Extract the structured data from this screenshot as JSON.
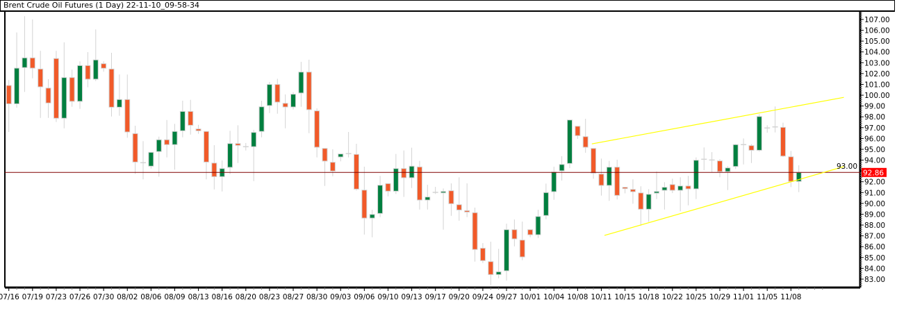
{
  "header": {
    "title": "Brent Crude Oil Futures (1 Day) 22-11-10_09-58-34"
  },
  "colors": {
    "bull": "#007f3f",
    "bear": "#f15a29",
    "outline": "#d3d3d3",
    "wick": "#d3d3d3",
    "trendline": "#ffff00",
    "price_line": "#800000",
    "price_badge": "#ff0000"
  },
  "chart_data": {
    "type": "candlestick",
    "title": "Brent Crude Oil Futures (1 Day) 22-11-10_09-58-34",
    "ylim": [
      82.3,
      107.7
    ],
    "y_ticks": [
      "107.00",
      "106.00",
      "105.00",
      "104.00",
      "103.00",
      "102.00",
      "101.00",
      "100.00",
      "99.00",
      "98.00",
      "97.00",
      "96.00",
      "95.00",
      "94.00",
      "93.00",
      "92.00",
      "91.00",
      "90.00",
      "89.00",
      "88.00",
      "87.00",
      "86.00",
      "85.00",
      "84.00",
      "83.00"
    ],
    "x_ticks": [
      {
        "index": 0,
        "label": "07/16"
      },
      {
        "index": 3,
        "label": "07/19"
      },
      {
        "index": 6,
        "label": "07/23"
      },
      {
        "index": 9,
        "label": "07/26"
      },
      {
        "index": 12,
        "label": "07/30"
      },
      {
        "index": 15,
        "label": "08/02"
      },
      {
        "index": 18,
        "label": "08/06"
      },
      {
        "index": 21,
        "label": "08/09"
      },
      {
        "index": 24,
        "label": "08/13"
      },
      {
        "index": 27,
        "label": "08/16"
      },
      {
        "index": 30,
        "label": "08/20"
      },
      {
        "index": 33,
        "label": "08/23"
      },
      {
        "index": 36,
        "label": "08/27"
      },
      {
        "index": 39,
        "label": "08/30"
      },
      {
        "index": 42,
        "label": "09/03"
      },
      {
        "index": 45,
        "label": "09/06"
      },
      {
        "index": 48,
        "label": "09/10"
      },
      {
        "index": 51,
        "label": "09/13"
      },
      {
        "index": 54,
        "label": "09/17"
      },
      {
        "index": 57,
        "label": "09/20"
      },
      {
        "index": 60,
        "label": "09/24"
      },
      {
        "index": 63,
        "label": "09/27"
      },
      {
        "index": 66,
        "label": "10/01"
      },
      {
        "index": 69,
        "label": "10/04"
      },
      {
        "index": 72,
        "label": "10/08"
      },
      {
        "index": 75,
        "label": "10/11"
      },
      {
        "index": 78,
        "label": "10/15"
      },
      {
        "index": 81,
        "label": "10/18"
      },
      {
        "index": 84,
        "label": "10/22"
      },
      {
        "index": 87,
        "label": "10/25"
      },
      {
        "index": 90,
        "label": "10/29"
      },
      {
        "index": 93,
        "label": "11/01"
      },
      {
        "index": 96,
        "label": "11/05"
      },
      {
        "index": 99,
        "label": "11/08"
      }
    ],
    "last_price": "92.86",
    "ohlc_columns": [
      "open",
      "high",
      "low",
      "close"
    ],
    "ohlc": [
      [
        100.9,
        101.4,
        96.6,
        99.2
      ],
      [
        99.2,
        105.8,
        98.85,
        102.5
      ],
      [
        102.55,
        107.3,
        100.3,
        103.45
      ],
      [
        103.45,
        107,
        101.56,
        102.5
      ],
      [
        102.42,
        104.1,
        97.9,
        100.77
      ],
      [
        100.66,
        101.48,
        97.9,
        99.28
      ],
      [
        103.39,
        104.1,
        97.52,
        97.87
      ],
      [
        97.87,
        104.88,
        96.94,
        101.63
      ],
      [
        101.63,
        102.36,
        98.93,
        99.43
      ],
      [
        99.43,
        103.13,
        98.74,
        102.74
      ],
      [
        102.74,
        103.98,
        100.73,
        101.48
      ],
      [
        101.48,
        106.08,
        101.3,
        103.26
      ],
      [
        102.91,
        103.13,
        102.17,
        102.49
      ],
      [
        102.42,
        103.92,
        98.03,
        98.89
      ],
      [
        98.89,
        101.91,
        98.1,
        99.6
      ],
      [
        99.6,
        101.91,
        96.07,
        96.6
      ],
      [
        96.45,
        97.18,
        92.73,
        93.82
      ],
      [
        93.76,
        95.75,
        92.22,
        93.76
      ],
      [
        93.44,
        94.72,
        93.22,
        94.72
      ],
      [
        94.79,
        96.17,
        92.47,
        95.88
      ],
      [
        95.88,
        97.71,
        94.25,
        95.43
      ],
      [
        95.43,
        97.35,
        93.12,
        96.65
      ],
      [
        96.71,
        99.49,
        96.11,
        98.5
      ],
      [
        98.5,
        99.57,
        96.36,
        97.22
      ],
      [
        96.88,
        97.26,
        96.43,
        96.71
      ],
      [
        96.65,
        96.65,
        92.22,
        93.82
      ],
      [
        93.73,
        95.38,
        91.29,
        92.47
      ],
      [
        92.47,
        93.97,
        91.1,
        93.22
      ],
      [
        93.33,
        96.71,
        92.71,
        95.53
      ],
      [
        95.53,
        97.22,
        93.73,
        95.36
      ],
      [
        95.24,
        95.58,
        94.89,
        95.24
      ],
      [
        95.24,
        96.8,
        92.06,
        96.56
      ],
      [
        96.65,
        99.49,
        96.11,
        98.93
      ],
      [
        99.04,
        101.22,
        98.35,
        100.99
      ],
      [
        100.99,
        101.52,
        98.29,
        99.36
      ],
      [
        99.25,
        100.07,
        96.94,
        98.91
      ],
      [
        98.91,
        100.28,
        98.68,
        100.09
      ],
      [
        100.2,
        103.08,
        98.93,
        102.14
      ],
      [
        102.14,
        103.28,
        96.49,
        98.66
      ],
      [
        98.55,
        98.78,
        94.25,
        95.19
      ],
      [
        95.08,
        95.08,
        91.61,
        93.91
      ],
      [
        93.8,
        95,
        92.51,
        92.99
      ],
      [
        94.29,
        94.57,
        93.89,
        94.57
      ],
      [
        94.6,
        96.6,
        94.25,
        94.6
      ],
      [
        94.53,
        95.51,
        91.19,
        91.32
      ],
      [
        91.23,
        93.39,
        87.12,
        88.64
      ],
      [
        88.64,
        89.41,
        86.87,
        88.98
      ],
      [
        89.07,
        92.54,
        88.73,
        91.68
      ],
      [
        91.83,
        91.83,
        90.65,
        91.13
      ],
      [
        91.13,
        94.57,
        90.87,
        93.22
      ],
      [
        93.22,
        94.89,
        90.6,
        92.37
      ],
      [
        92.37,
        95.15,
        91.42,
        93.44
      ],
      [
        93.37,
        93.93,
        89.43,
        90.31
      ],
      [
        90.31,
        91.72,
        89.43,
        90.59
      ],
      [
        91.02,
        91.53,
        90.87,
        91.02
      ],
      [
        90.99,
        91.38,
        87.57,
        91.1
      ],
      [
        91.17,
        91.85,
        88.85,
        89.97
      ],
      [
        89.88,
        92.41,
        88.4,
        89.39
      ],
      [
        89.33,
        91.85,
        88.73,
        89.2
      ],
      [
        89.14,
        89.61,
        84.62,
        85.74
      ],
      [
        85.86,
        86.33,
        84.49,
        84.71
      ],
      [
        84.62,
        86.46,
        82.44,
        83.42
      ],
      [
        83.42,
        85.8,
        83.08,
        83.68
      ],
      [
        83.77,
        88.13,
        82.87,
        87.57
      ],
      [
        87.57,
        88.51,
        86.03,
        86.72
      ],
      [
        86.61,
        88.32,
        84.75,
        85.05
      ],
      [
        87.57,
        87.57,
        86.87,
        87.1
      ],
      [
        87.1,
        89.41,
        86.8,
        88.79
      ],
      [
        88.88,
        91.83,
        88.53,
        91
      ],
      [
        91.08,
        93.39,
        90.33,
        92.9
      ],
      [
        93.01,
        94.36,
        92.11,
        93.6
      ],
      [
        93.69,
        97.71,
        93.26,
        97.71
      ],
      [
        97.13,
        97.13,
        95.96,
        96.26
      ],
      [
        96.17,
        97.82,
        94.68,
        95.19
      ],
      [
        95.08,
        95.08,
        92.28,
        92.8
      ],
      [
        92.71,
        94.14,
        90.72,
        91.66
      ],
      [
        91.66,
        93.93,
        90.23,
        93.35
      ],
      [
        93.35,
        94.04,
        90.36,
        90.74
      ],
      [
        91.49,
        91.49,
        90.93,
        91.38
      ],
      [
        91.29,
        92.22,
        89.97,
        91.08
      ],
      [
        90.97,
        91.58,
        87.94,
        89.46
      ],
      [
        89.46,
        91.32,
        88.3,
        90.84
      ],
      [
        90.95,
        92.96,
        90.4,
        91.1
      ],
      [
        91.21,
        91.96,
        89.43,
        91.49
      ],
      [
        91.74,
        92.28,
        90.95,
        91.21
      ],
      [
        91.21,
        92.41,
        89.27,
        91.61
      ],
      [
        91.61,
        92.54,
        89.82,
        91.34
      ],
      [
        91.34,
        94.25,
        90.4,
        93.99
      ],
      [
        94.08,
        95.17,
        93.07,
        94.08
      ],
      [
        94.01,
        94.74,
        92.88,
        94.01
      ],
      [
        93.93,
        94.08,
        92.41,
        92.94
      ],
      [
        92.94,
        93.44,
        91.23,
        93.28
      ],
      [
        93.41,
        95.49,
        93.18,
        95.43
      ],
      [
        95.43,
        96,
        93.6,
        95.43
      ],
      [
        95.34,
        95.47,
        93.73,
        94.91
      ],
      [
        94.91,
        98.25,
        94.79,
        98.03
      ],
      [
        96.97,
        97.22,
        96.54,
        96.97
      ],
      [
        97.07,
        98.96,
        96.56,
        97.07
      ],
      [
        97.03,
        97.46,
        94.29,
        94.37
      ],
      [
        94.31,
        94.85,
        91.51,
        92.03
      ],
      [
        92.03,
        93.52,
        91.04,
        92.86
      ]
    ],
    "trendlines": [
      {
        "name": "upper-channel",
        "start": {
          "index": 73.8,
          "price": 95.5
        },
        "end": {
          "index": 105.7,
          "price": 99.8
        }
      },
      {
        "name": "lower-channel",
        "start": {
          "index": 75.4,
          "price": 87.04
        },
        "end": {
          "index": 105.7,
          "price": 93.4
        }
      }
    ]
  }
}
